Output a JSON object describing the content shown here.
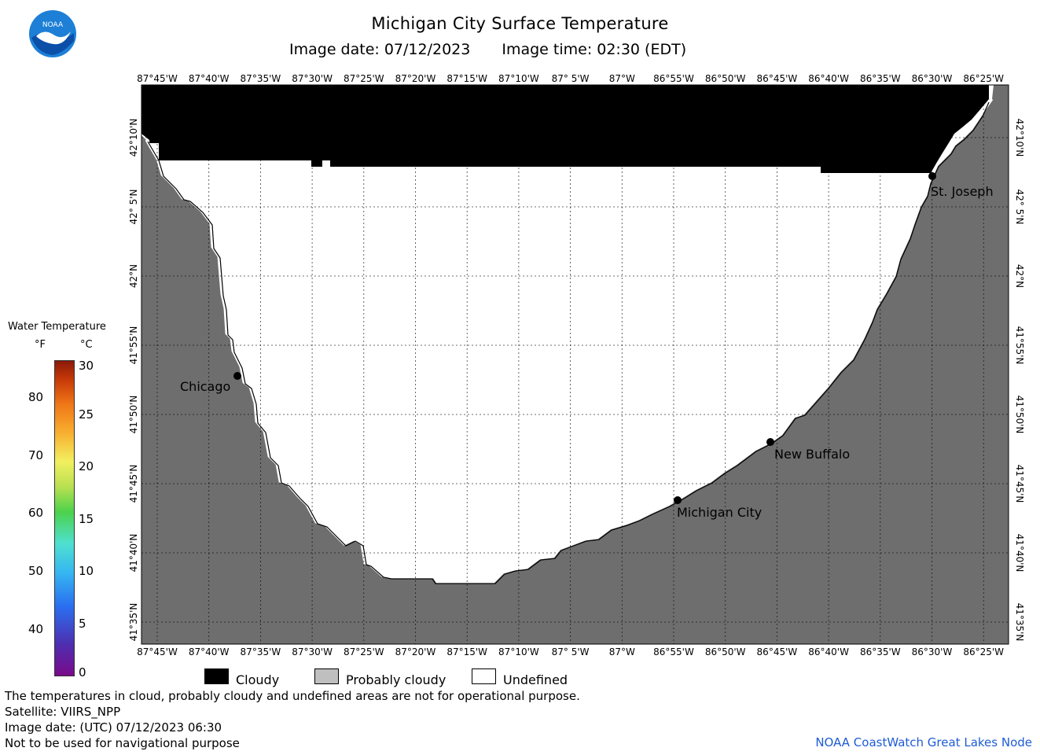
{
  "header": {
    "title": "Michigan City Surface Temperature",
    "image_date_label": "Image date: 07/12/2023",
    "image_time_label": "Image time: 02:30 (EDT)"
  },
  "logo": {
    "text": "NOAA",
    "icon": "noaa-logo-icon"
  },
  "map": {
    "lon_labels": [
      "87°45'W",
      "87°40'W",
      "87°35'W",
      "87°30'W",
      "87°25'W",
      "87°20'W",
      "87°15'W",
      "87°10'W",
      "87° 5'W",
      "87°W",
      "86°55'W",
      "86°50'W",
      "86°45'W",
      "86°40'W",
      "86°35'W",
      "86°30'W",
      "86°25'W"
    ],
    "lat_labels": [
      "42°10'N",
      "42° 5'N",
      "42°N",
      "41°55'N",
      "41°50'N",
      "41°45'N",
      "41°40'N",
      "41°35'N"
    ],
    "cities": [
      {
        "name": "Chicago"
      },
      {
        "name": "St. Joseph"
      },
      {
        "name": "New Buffalo"
      },
      {
        "name": "Michigan City"
      }
    ],
    "colors": {
      "land": "#6e6e6e",
      "cloud": "#000000",
      "undefined": "#ffffff",
      "grid": "#000000"
    }
  },
  "scale": {
    "title": "Water Temperature",
    "unit_f": "°F",
    "unit_c": "°C",
    "f_ticks": [
      "80",
      "70",
      "60",
      "50",
      "40"
    ],
    "c_ticks": [
      "30",
      "25",
      "20",
      "15",
      "10",
      "5",
      "0"
    ]
  },
  "legend": {
    "cloudy": "Cloudy",
    "probably_cloudy": "Probably cloudy",
    "undefined": "Undefined",
    "cloudy_color": "#000000",
    "probably_cloudy_color": "#bfbfbf",
    "undefined_color": "#ffffff"
  },
  "footer": {
    "line1": "The temperatures in cloud, probably cloudy and undefined areas are not for operational purpose.",
    "line2": "Satellite: VIIRS_NPP",
    "line3": "Image date: (UTC) 07/12/2023  06:30",
    "line4": "Not to be used for navigational purpose",
    "credit": "NOAA CoastWatch Great Lakes Node"
  }
}
